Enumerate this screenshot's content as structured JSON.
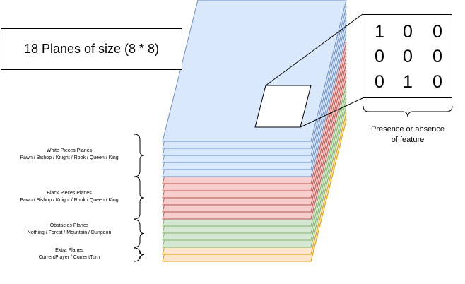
{
  "title": "18 Planes of size (8 * 8)",
  "feature_matrix": [
    [
      "1",
      "0",
      "0"
    ],
    [
      "0",
      "0",
      "0"
    ],
    [
      "0",
      "1",
      "0"
    ]
  ],
  "feature_caption": [
    "Presence or absence",
    "of feature"
  ],
  "plane_groups": [
    {
      "name": "White Pieces Planes",
      "detail": "Pawn / Bishop / Knight / Rook / Queen / King",
      "count": 6,
      "fill": "#dae8fc",
      "stroke": "#6c8ebf"
    },
    {
      "name": "Black  Pieces Planes",
      "detail": "Pawn / Bishop / Knight / Rook / Queen / King",
      "count": 6,
      "fill": "#f8cecc",
      "stroke": "#b85450"
    },
    {
      "name": "Obstacles Planes",
      "detail": "Nothing / Forest / Mountain / Dungeon",
      "count": 4,
      "fill": "#d5e8d4",
      "stroke": "#82b366"
    },
    {
      "name": "Extra Planes",
      "detail": "CurrentPlayer / CurrentTurn",
      "count": 2,
      "fill": "#ffe6cc",
      "stroke": "#d79b00"
    }
  ]
}
